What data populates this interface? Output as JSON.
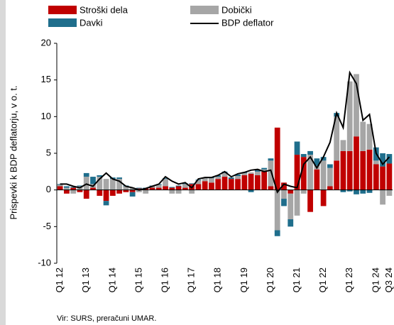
{
  "chart_data": {
    "type": "bar_line",
    "y_label": "Prispevki k BDP deflatorju, v o. t.",
    "source": "Vir: SURS, preračuni UMAR.",
    "categories": [
      "Q1 12",
      null,
      null,
      null,
      "Q1 13",
      null,
      null,
      null,
      "Q1 14",
      null,
      null,
      null,
      "Q1 15",
      null,
      null,
      null,
      "Q1 16",
      null,
      null,
      null,
      "Q1 17",
      null,
      null,
      null,
      "Q1 18",
      null,
      null,
      null,
      "Q1 19",
      null,
      null,
      null,
      "Q1 20",
      null,
      null,
      null,
      "Q1 21",
      null,
      null,
      null,
      "Q1 22",
      null,
      null,
      null,
      "Q1 23",
      null,
      null,
      null,
      "Q1 24",
      null,
      "Q3 24"
    ],
    "series": [
      {
        "name": "Stroški dela",
        "color": "#c00000",
        "values": [
          0.5,
          -0.5,
          0.3,
          -0.3,
          -1.2,
          0.3,
          -0.8,
          -1.5,
          -0.8,
          -0.5,
          -0.3,
          -0.3,
          0.2,
          0.2,
          0.3,
          0.3,
          0.5,
          0.3,
          0.5,
          0.3,
          0.8,
          0.8,
          1.2,
          1.0,
          1.5,
          1.8,
          1.5,
          1.5,
          2.0,
          2.2,
          2.0,
          2.5,
          0.5,
          8.5,
          1.0,
          -0.5,
          4.8,
          4.5,
          -3.0,
          2.8,
          -2.2,
          0.5,
          4.0,
          5.3,
          5.3,
          7.3,
          5.3,
          5.5,
          3.5,
          3.2,
          3.6
        ]
      },
      {
        "name": "Dobički",
        "color": "#a6a6a6",
        "values": [
          0.2,
          0.3,
          -0.5,
          0.5,
          1.8,
          0.5,
          1.8,
          1.5,
          1.5,
          1.5,
          0.5,
          0.3,
          -0.3,
          -0.5,
          0.2,
          0.4,
          1.0,
          -0.5,
          -0.5,
          0.5,
          -0.5,
          0.5,
          0.4,
          0.6,
          0.3,
          0.5,
          0.0,
          0.4,
          0.3,
          0.2,
          0.5,
          0.3,
          3.5,
          -5.5,
          -1.2,
          -3.5,
          -3.5,
          -0.5,
          4.8,
          0.5,
          4.0,
          2.5,
          6.0,
          1.5,
          9.5,
          8.5,
          4.0,
          3.5,
          0.5,
          -2.0,
          -0.8
        ]
      },
      {
        "name": "Davki",
        "color": "#1f6e8c",
        "values": [
          0.1,
          0.2,
          0.1,
          0.1,
          0.5,
          1.0,
          0.2,
          -0.6,
          0.2,
          0.2,
          0.1,
          -0.6,
          0.1,
          0.1,
          0.1,
          0.1,
          0.1,
          0.1,
          0.1,
          0.1,
          0.1,
          0.1,
          0.1,
          0.1,
          0.2,
          0.2,
          0.2,
          0.2,
          0.1,
          -0.3,
          0.2,
          0.2,
          0.3,
          -0.8,
          -1.0,
          -1.0,
          1.8,
          0.4,
          0.5,
          1.0,
          0.5,
          0.5,
          0.5,
          -0.3,
          -0.2,
          -0.6,
          -0.5,
          -0.4,
          1.8,
          1.8,
          1.3
        ]
      }
    ],
    "line": {
      "name": "BDP deflator",
      "color": "#000000",
      "values": [
        0.8,
        0.8,
        0.5,
        0.3,
        0.8,
        0.5,
        1.5,
        2.3,
        1.5,
        1.2,
        0.5,
        0.3,
        0.0,
        0.2,
        0.5,
        0.8,
        1.8,
        1.2,
        0.8,
        1.0,
        0.3,
        1.5,
        1.7,
        1.7,
        2.0,
        2.5,
        1.8,
        2.2,
        2.4,
        2.7,
        2.8,
        2.5,
        2.7,
        -0.3,
        0.8,
        0.5,
        0.3,
        3.5,
        4.5,
        3.0,
        4.5,
        6.5,
        10.5,
        8.5,
        16.0,
        14.5,
        9.5,
        10.3,
        5.0,
        3.5,
        4.5
      ]
    },
    "ylim": [
      -10,
      20
    ],
    "yticks": [
      -10,
      -5,
      0,
      5,
      10,
      15,
      20
    ]
  }
}
